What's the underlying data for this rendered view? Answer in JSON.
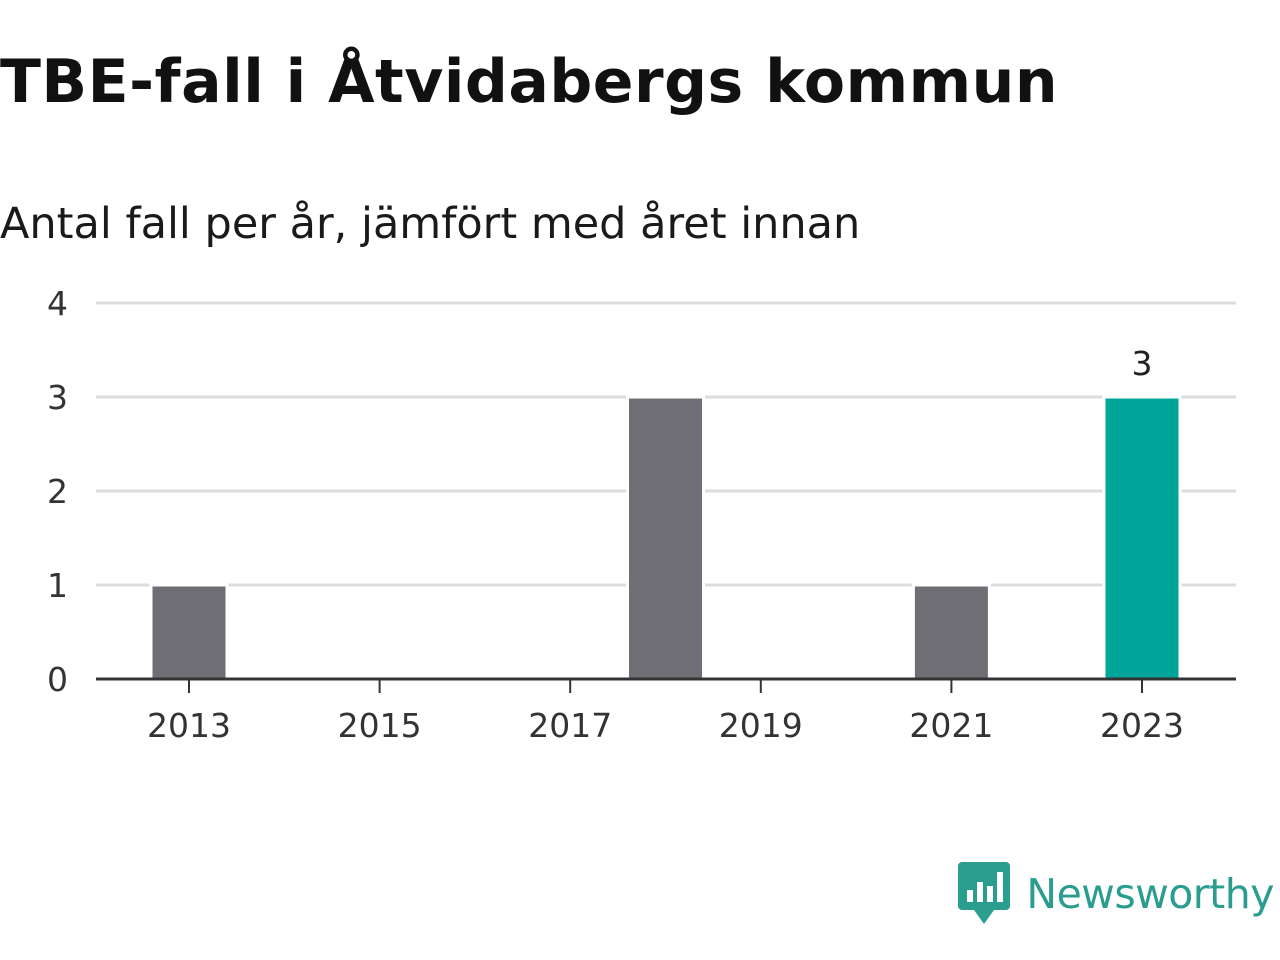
{
  "title": "TBE-fall i Åtvidabergs kommun",
  "subtitle": "Antal fall per år, jämfört med året innan",
  "brand": {
    "name": "Newsworthy",
    "icon": "newsworthy-logo-icon",
    "color": "#2a9d8f"
  },
  "chart_data": {
    "type": "bar",
    "categories": [
      "2013",
      "2014",
      "2015",
      "2016",
      "2017",
      "2018",
      "2019",
      "2020",
      "2021",
      "2022",
      "2023"
    ],
    "values": [
      1,
      0,
      0,
      0,
      0,
      3,
      0,
      0,
      1,
      0,
      3
    ],
    "x_tick_labels": [
      "2013",
      "2015",
      "2017",
      "2019",
      "2021",
      "2023"
    ],
    "y_ticks": [
      0,
      1,
      2,
      3,
      4
    ],
    "ylim": [
      0,
      4
    ],
    "xlabel": "",
    "ylabel": "",
    "grid": true,
    "highlight": {
      "category": "2023",
      "label": "3"
    },
    "colors": {
      "bar": "#6f6e74",
      "highlight": "#00a59a",
      "grid": "#dcdcdc",
      "axis": "#333333"
    }
  }
}
